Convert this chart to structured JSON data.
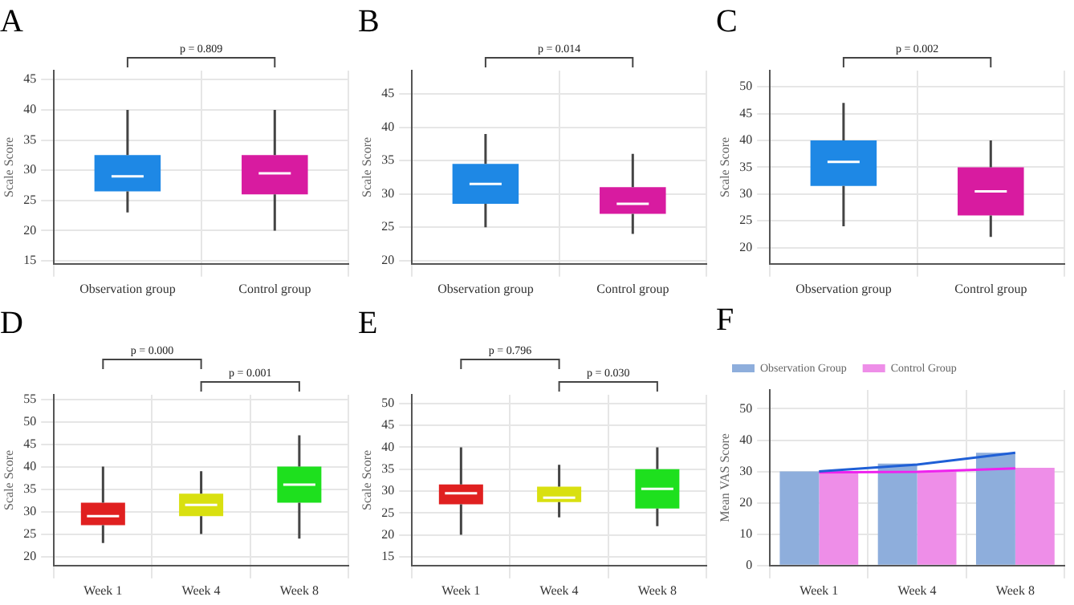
{
  "chart_data": [
    {
      "type": "box",
      "title": "A",
      "ylabel": "Scale Score",
      "categories": [
        "Observation group",
        "Control group"
      ],
      "colors": [
        "#1e88e5",
        "#d81ba0"
      ],
      "ylim": [
        14.5,
        46.5
      ],
      "yticks": [
        15,
        20,
        25,
        30,
        35,
        40,
        45
      ],
      "grid": true,
      "annotations": [
        "p = 0.809"
      ],
      "boxes": [
        {
          "low": 23,
          "q1": 26.5,
          "median": 29,
          "q3": 32.5,
          "high": 40
        },
        {
          "low": 20,
          "q1": 26,
          "median": 29.5,
          "q3": 32.5,
          "high": 40
        }
      ]
    },
    {
      "type": "box",
      "title": "B",
      "ylabel": "Scale Score",
      "categories": [
        "Observation group",
        "Control group"
      ],
      "colors": [
        "#1e88e5",
        "#d81ba0"
      ],
      "ylim": [
        19.5,
        48.5
      ],
      "yticks": [
        20,
        25,
        30,
        35,
        40,
        45
      ],
      "grid": true,
      "annotations": [
        "p = 0.014"
      ],
      "boxes": [
        {
          "low": 25,
          "q1": 28.5,
          "median": 31.5,
          "q3": 34.5,
          "high": 39
        },
        {
          "low": 24,
          "q1": 27,
          "median": 28.5,
          "q3": 31,
          "high": 36
        }
      ]
    },
    {
      "type": "box",
      "title": "C",
      "ylabel": "Scale Score",
      "categories": [
        "Observation group",
        "Control group"
      ],
      "colors": [
        "#1e88e5",
        "#d81ba0"
      ],
      "ylim": [
        17,
        53
      ],
      "yticks": [
        20,
        25,
        30,
        35,
        40,
        45,
        50
      ],
      "grid": true,
      "annotations": [
        "p = 0.002"
      ],
      "boxes": [
        {
          "low": 24,
          "q1": 31.5,
          "median": 36,
          "q3": 40,
          "high": 47
        },
        {
          "low": 22,
          "q1": 26,
          "median": 30.5,
          "q3": 35,
          "high": 40
        }
      ]
    },
    {
      "type": "box",
      "title": "D",
      "ylabel": "Scale Score",
      "categories": [
        "Week 1",
        "Week 4",
        "Week 8"
      ],
      "colors": [
        "#e02020",
        "#d9e010",
        "#1ee01e"
      ],
      "ylim": [
        18,
        56
      ],
      "yticks": [
        20,
        25,
        30,
        35,
        40,
        45,
        50,
        55
      ],
      "grid": true,
      "annotations": [
        "p = 0.000",
        "p = 0.001"
      ],
      "boxes": [
        {
          "low": 23,
          "q1": 27,
          "median": 29,
          "q3": 32,
          "high": 40
        },
        {
          "low": 25,
          "q1": 29,
          "median": 31.5,
          "q3": 34,
          "high": 39
        },
        {
          "low": 24,
          "q1": 32,
          "median": 36,
          "q3": 40,
          "high": 47
        }
      ]
    },
    {
      "type": "box",
      "title": "E",
      "ylabel": "Scale Score",
      "categories": [
        "Week 1",
        "Week 4",
        "Week 8"
      ],
      "colors": [
        "#e02020",
        "#d9e010",
        "#1ee01e"
      ],
      "ylim": [
        13,
        52
      ],
      "yticks": [
        15,
        20,
        25,
        30,
        35,
        40,
        45,
        50
      ],
      "grid": true,
      "annotations": [
        "p = 0.796",
        "p = 0.030"
      ],
      "boxes": [
        {
          "low": 20,
          "q1": 27,
          "median": 29.5,
          "q3": 31.5,
          "high": 40
        },
        {
          "low": 24,
          "q1": 27.5,
          "median": 28.5,
          "q3": 31,
          "high": 36
        },
        {
          "low": 22,
          "q1": 26,
          "median": 30.5,
          "q3": 35,
          "high": 40
        }
      ]
    },
    {
      "type": "bar",
      "title": "F",
      "ylabel": "Mean VAS Score",
      "categories": [
        "Week 1",
        "Week 4",
        "Week 8"
      ],
      "ylim": [
        0,
        56
      ],
      "yticks": [
        0,
        10,
        20,
        30,
        40,
        50
      ],
      "grid": true,
      "legend": "top left",
      "series": [
        {
          "name": "Observation Group",
          "color": "#8eaedc",
          "values": [
            30,
            32.5,
            36
          ]
        },
        {
          "name": "Control Group",
          "color": "#ee8ee8",
          "values": [
            29.8,
            30,
            31.2
          ]
        },
        {
          "type": "line",
          "color": "#1f5fd6",
          "values": [
            30,
            32.2,
            36
          ]
        },
        {
          "type": "line",
          "color": "#ee22ee",
          "values": [
            29.7,
            29.9,
            31
          ]
        }
      ]
    }
  ]
}
